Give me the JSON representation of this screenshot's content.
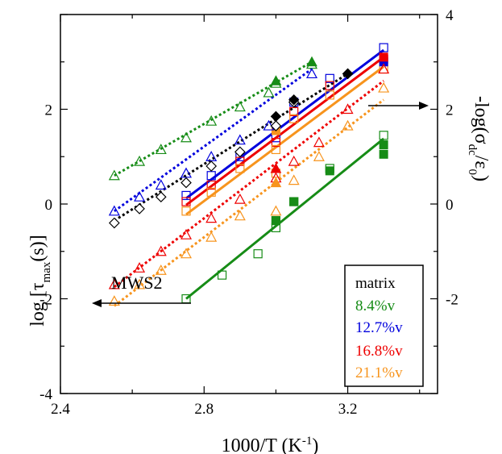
{
  "chart_data": {
    "type": "scatter",
    "xlabel": "1000/T (K⁻¹)",
    "ylabel_left": "log [τmax(s)]",
    "ylabel_right": "-log(σdc/ε0)",
    "xlim": [
      2.4,
      3.45
    ],
    "ylim_left": [
      -4,
      4
    ],
    "ylim_right": [
      -4,
      4
    ],
    "x_ticks": [
      "2.4",
      "2.8",
      "3.2"
    ],
    "y_ticks_left": [
      "-4",
      "-2",
      "0",
      "2"
    ],
    "y_ticks_right": [
      "-2",
      "0",
      "2",
      "4"
    ],
    "grid": false,
    "annotation": "MWS2",
    "legend": {
      "title": "matrix",
      "position": "bottom-right",
      "entries": [
        "8.4%v",
        "12.7%v",
        "16.8%v",
        "21.1%v"
      ]
    },
    "series_colors": [
      "#168c16",
      "#0000dd",
      "#ee0000",
      "#f7941d"
    ],
    "tau_series": [
      {
        "name": "8.4%v",
        "x": [
          2.75,
          2.85,
          2.95,
          3.0,
          3.0,
          3.05,
          3.15,
          3.3
        ],
        "y": [
          -2.0,
          -1.5,
          -1.05,
          -0.5,
          -0.35,
          0.05,
          0.75,
          1.45
        ],
        "fit": [
          [
            2.75,
            -2.0
          ],
          [
            3.3,
            1.38
          ]
        ]
      },
      {
        "name": "12.7%v",
        "x": [
          2.75,
          2.82,
          2.9,
          3.0,
          3.05,
          3.15,
          3.3
        ],
        "y": [
          0.18,
          0.6,
          1.0,
          1.4,
          2.15,
          2.65,
          3.3
        ],
        "fit": [
          [
            2.75,
            0.12
          ],
          [
            3.3,
            3.25
          ]
        ]
      },
      {
        "name": "16.8%v",
        "x": [
          2.75,
          2.82,
          2.9,
          3.0,
          3.05,
          3.15,
          3.3
        ],
        "y": [
          0.05,
          0.4,
          0.9,
          1.3,
          1.95,
          2.5,
          3.05
        ],
        "fit": [
          [
            2.75,
            -0.02
          ],
          [
            3.3,
            3.1
          ]
        ]
      },
      {
        "name": "21.1%v",
        "x": [
          2.75,
          2.82,
          2.9,
          3.0,
          3.0,
          3.05,
          3.15,
          3.3
        ],
        "y": [
          -0.15,
          0.25,
          0.75,
          0.65,
          1.15,
          1.8,
          2.3,
          2.85
        ],
        "fit": [
          [
            2.75,
            -0.22
          ],
          [
            3.3,
            2.9
          ]
        ]
      }
    ],
    "tau_filled": [
      {
        "series": 0,
        "x": 3.0,
        "y": -0.35
      },
      {
        "series": 0,
        "x": 3.05,
        "y": 0.05
      },
      {
        "series": 0,
        "x": 3.15,
        "y": 0.7
      },
      {
        "series": 0,
        "x": 3.3,
        "y": 1.05
      },
      {
        "series": 0,
        "x": 3.3,
        "y": 1.25
      },
      {
        "series": 1,
        "x": 3.3,
        "y": 3.0
      },
      {
        "series": 2,
        "x": 3.3,
        "y": 3.1
      },
      {
        "series": 3,
        "x": 3.0,
        "y": 1.55
      }
    ],
    "sigma_series": [
      {
        "name": "8.4%v",
        "x": [
          2.55,
          2.62,
          2.68,
          2.75,
          2.82,
          2.9,
          2.98,
          3.0,
          3.1
        ],
        "y": [
          0.6,
          0.9,
          1.15,
          1.4,
          1.75,
          2.05,
          2.35,
          2.55,
          2.95
        ],
        "fit": [
          [
            2.55,
            0.6
          ],
          [
            3.1,
            3.0
          ]
        ]
      },
      {
        "name": "12.7%v",
        "x": [
          2.55,
          2.62,
          2.68,
          2.75,
          2.82,
          2.9,
          2.98,
          3.1
        ],
        "y": [
          -0.15,
          0.15,
          0.4,
          0.65,
          1.0,
          1.35,
          1.65,
          2.75
        ],
        "fit": [
          [
            2.55,
            -0.15
          ],
          [
            3.1,
            2.85
          ]
        ]
      },
      {
        "name": "black",
        "x": [
          2.55,
          2.62,
          2.68,
          2.75,
          2.82,
          2.9,
          3.0,
          3.05,
          3.2
        ],
        "y": [
          -0.4,
          -0.1,
          0.15,
          0.45,
          0.8,
          1.1,
          1.65,
          2.15,
          2.75
        ],
        "fit": [
          [
            2.55,
            -0.35
          ],
          [
            3.2,
            2.75
          ]
        ]
      },
      {
        "name": "16.8%v",
        "x": [
          2.55,
          2.62,
          2.68,
          2.75,
          2.82,
          2.9,
          3.0,
          3.05,
          3.12,
          3.2,
          3.3
        ],
        "y": [
          -1.7,
          -1.35,
          -1.0,
          -0.65,
          -0.3,
          0.1,
          0.55,
          0.9,
          1.3,
          2.0,
          2.85
        ],
        "fit": [
          [
            2.55,
            -1.75
          ],
          [
            3.3,
            2.6
          ]
        ]
      },
      {
        "name": "21.1%v",
        "x": [
          2.55,
          2.62,
          2.68,
          2.75,
          2.82,
          2.9,
          3.0,
          3.05,
          3.12,
          3.2,
          3.3
        ],
        "y": [
          -2.05,
          -1.7,
          -1.4,
          -1.05,
          -0.7,
          -0.25,
          -0.15,
          0.5,
          1.0,
          1.65,
          2.45
        ],
        "fit": [
          [
            2.55,
            -2.15
          ],
          [
            3.3,
            2.2
          ]
        ]
      }
    ],
    "sigma_filled": [
      {
        "series": 0,
        "x": 3.0,
        "y": 2.6
      },
      {
        "series": 0,
        "x": 3.1,
        "y": 3.0
      },
      {
        "series": 2,
        "x": 3.0,
        "y": 1.85
      },
      {
        "series": 2,
        "x": 3.05,
        "y": 2.2
      },
      {
        "series": 2,
        "x": 3.2,
        "y": 2.75
      },
      {
        "series": 3,
        "x": 3.0,
        "y": 0.75
      },
      {
        "series": 4,
        "x": 3.0,
        "y": 0.45
      }
    ],
    "sigma_series_colors": [
      "#168c16",
      "#0000dd",
      "#000000",
      "#ee0000",
      "#f7941d"
    ]
  }
}
